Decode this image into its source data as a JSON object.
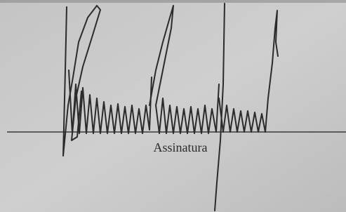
{
  "signature_line": {
    "label": "Assinatura"
  }
}
